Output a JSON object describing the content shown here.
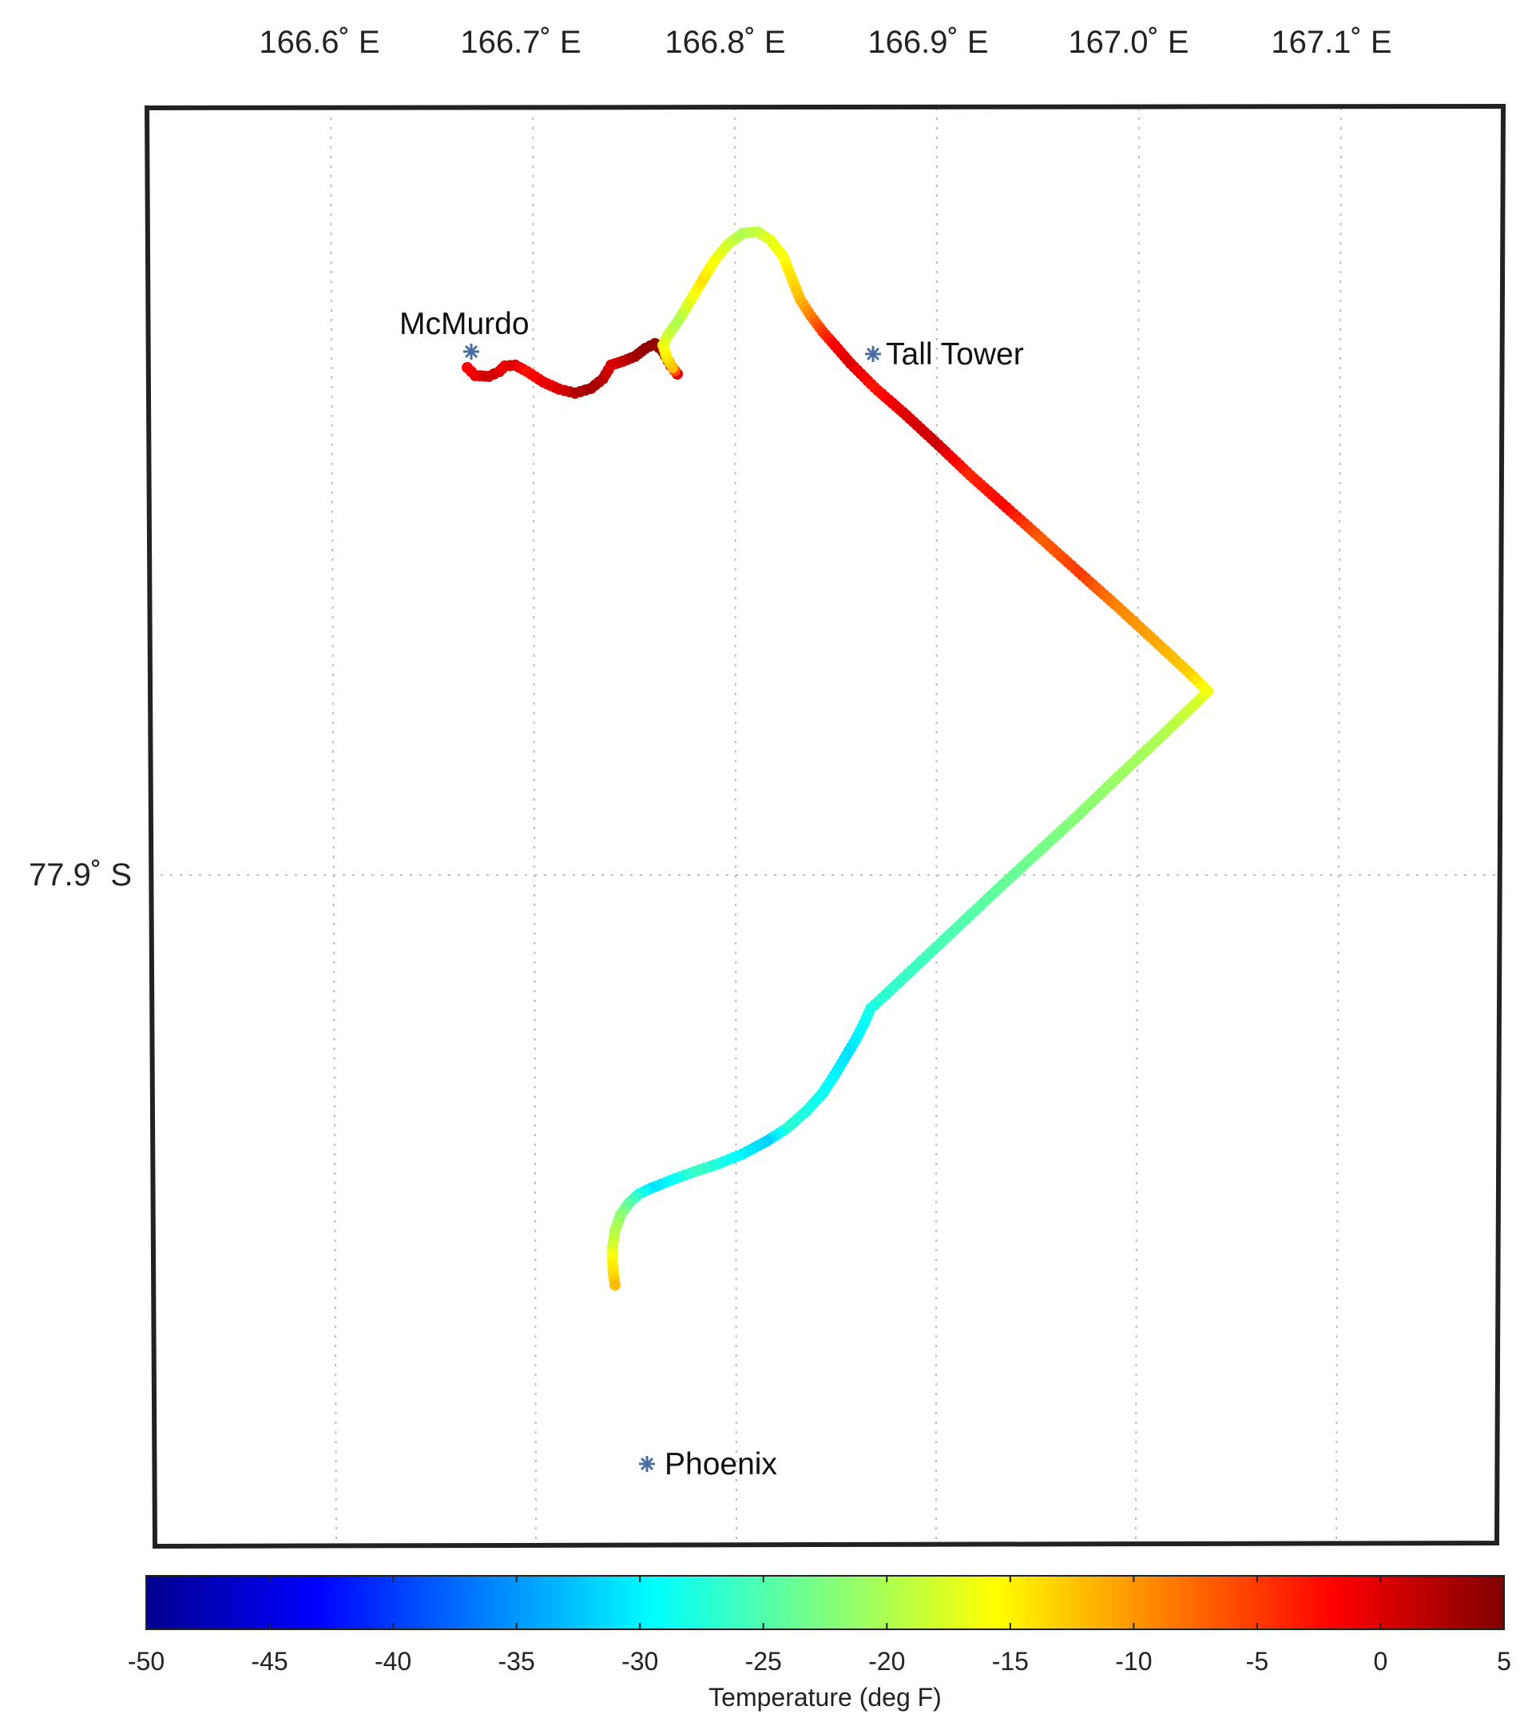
{
  "map": {
    "longitude_ticks": [
      "166.6˚ E",
      "166.7˚ E",
      "166.8˚ E",
      "166.9˚ E",
      "167.0˚ E",
      "167.1˚ E"
    ],
    "latitude_ticks": [
      "77.9˚ S"
    ],
    "grid": true,
    "frame_color": "#222222",
    "grid_color": "#bdbdbd"
  },
  "places": [
    {
      "id": "mcmurdo",
      "name": "McMurdo",
      "marker": "asterisk-icon",
      "marker_color": "#4a6fa5"
    },
    {
      "id": "tall-tower",
      "name": "Tall Tower",
      "marker": "asterisk-icon",
      "marker_color": "#4a6fa5"
    },
    {
      "id": "phoenix",
      "name": "Phoenix",
      "marker": "asterisk-icon",
      "marker_color": "#4a6fa5"
    }
  ],
  "track": {
    "description_units": "temperature in deg F along route",
    "temperatures": [
      -2,
      -1,
      1,
      0,
      -1,
      0,
      -3,
      -1,
      0,
      2,
      3,
      2,
      0,
      1,
      3,
      4,
      4,
      3,
      2,
      0,
      -12,
      -14,
      -16,
      -18,
      -20,
      -17,
      -14,
      -16,
      -18,
      -20,
      -19,
      -17,
      -16,
      -14,
      -12,
      -9,
      -5,
      -2,
      0,
      -3,
      -1,
      0,
      1,
      -4,
      -2,
      -7,
      -5,
      -9,
      -11,
      -13,
      -16,
      -18,
      -20,
      -21,
      -22,
      -23,
      -24,
      -25,
      -26,
      -27,
      -28,
      -29,
      -30,
      -31,
      -30,
      -29,
      -28,
      -27,
      -32,
      -30,
      -28,
      -26,
      -29,
      -31,
      -28,
      -25,
      -22,
      -20,
      -18,
      -15,
      -14,
      -12
    ]
  },
  "colorbar": {
    "title": "Temperature (deg F)",
    "colormap": "jet",
    "range": [
      -50,
      5
    ],
    "ticks": [
      "-50",
      "-45",
      "-40",
      "-35",
      "-30",
      "-25",
      "-20",
      "-15",
      "-10",
      "-5",
      "0",
      "5"
    ]
  }
}
